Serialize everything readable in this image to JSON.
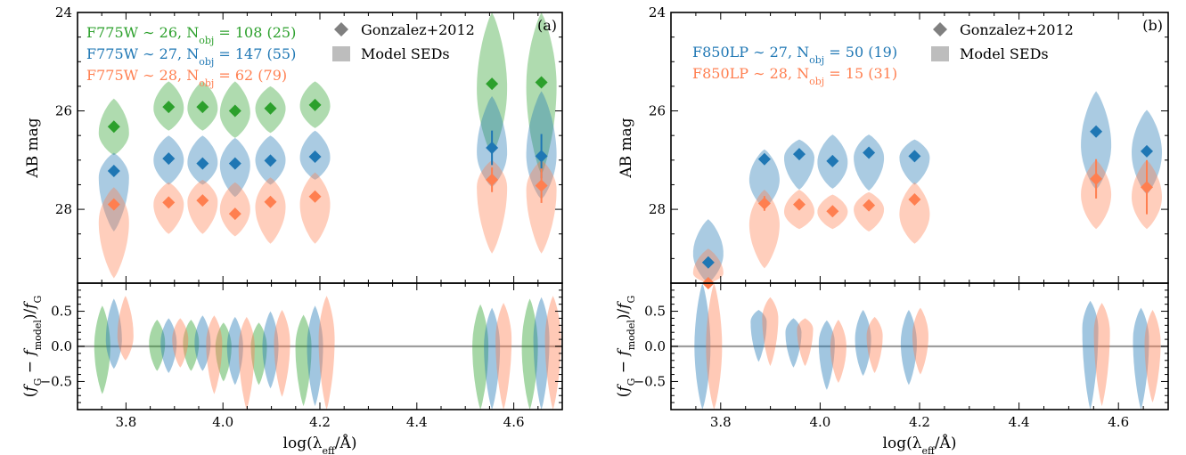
{
  "colors": {
    "green": "#2ca02c",
    "blue": "#1f77b4",
    "orange": "#ff7f50",
    "legend_gray": "#808080",
    "model_gray": "#bdbdbd",
    "zero_line": "#9e9e9e"
  },
  "chart_data": [
    {
      "type": "violin",
      "panel_label": "(a)",
      "xlabel": "log(λeff/Å)",
      "xlabel_parts": [
        "log(λ",
        "eff",
        "/Å)"
      ],
      "ylabel_top": "AB mag",
      "ylabel_bottom": "(fG − fmodel)/fG",
      "xlim": [
        3.7,
        4.7
      ],
      "top_ylim": [
        29.5,
        24
      ],
      "top_yticks": [
        24,
        26,
        28
      ],
      "bottom_ylim": [
        -0.9,
        0.9
      ],
      "bottom_yticks": [
        -0.5,
        0.0,
        0.5
      ],
      "xticks": [
        3.8,
        4.0,
        4.2,
        4.4,
        4.6
      ],
      "xtick_labels": [
        "3.8",
        "4.0",
        "4.2",
        "4.4",
        "4.6"
      ],
      "bottom_ytick_labels": [
        "−0.5",
        "0.0",
        "0.5"
      ],
      "legend_markers": [
        "Gonzalez+2012",
        "Model SEDs"
      ],
      "x": [
        3.775,
        3.888,
        3.958,
        4.025,
        4.098,
        4.19,
        4.555,
        4.657
      ],
      "series": [
        {
          "label_parts": [
            "F775W ∼ 26, N",
            "obj",
            " = 108 (25)"
          ],
          "color": "green",
          "gonzalez_mag": [
            26.32,
            25.92,
            25.92,
            26.0,
            25.95,
            25.88,
            25.45,
            25.42
          ],
          "gonzalez_err": [
            0.05,
            0.04,
            0.04,
            0.04,
            0.04,
            0.04,
            0.06,
            0.06
          ],
          "model_range": [
            [
              25.75,
              26.9
            ],
            [
              25.4,
              26.4
            ],
            [
              25.4,
              26.4
            ],
            [
              25.4,
              26.55
            ],
            [
              25.5,
              26.45
            ],
            [
              25.4,
              26.35
            ],
            [
              24.0,
              26.9
            ],
            [
              24.0,
              27.3
            ]
          ],
          "model_peak": [
            26.45,
            25.95,
            25.95,
            26.05,
            25.95,
            25.9,
            25.55,
            25.5
          ],
          "resid_range": [
            [
              -0.68,
              0.58
            ],
            [
              -0.35,
              0.38
            ],
            [
              -0.35,
              0.38
            ],
            [
              -0.5,
              0.34
            ],
            [
              -0.55,
              0.34
            ],
            [
              -0.85,
              0.45
            ],
            [
              -0.9,
              0.6
            ],
            [
              -0.9,
              0.68
            ]
          ],
          "resid_peak": [
            0.0,
            0.05,
            0.05,
            0.0,
            0.0,
            0.0,
            0.0,
            0.0
          ]
        },
        {
          "label_parts": [
            "F775W ∼ 27, N",
            "obj",
            " = 147 (55)"
          ],
          "color": "blue",
          "gonzalez_mag": [
            27.22,
            26.97,
            27.07,
            27.07,
            27.01,
            26.93,
            26.75,
            26.92
          ],
          "gonzalez_err": [
            0.06,
            0.05,
            0.05,
            0.05,
            0.05,
            0.05,
            0.35,
            0.45
          ],
          "model_range": [
            [
              26.85,
              28.45
            ],
            [
              26.5,
              27.5
            ],
            [
              26.5,
              27.5
            ],
            [
              26.55,
              27.75
            ],
            [
              26.5,
              27.5
            ],
            [
              26.4,
              27.4
            ],
            [
              25.7,
              27.55
            ],
            [
              25.6,
              27.8
            ]
          ],
          "model_peak": [
            27.35,
            27.0,
            27.05,
            27.1,
            27.0,
            26.95,
            26.85,
            26.9
          ],
          "resid_range": [
            [
              -0.32,
              0.68
            ],
            [
              -0.38,
              0.4
            ],
            [
              -0.35,
              0.44
            ],
            [
              -0.55,
              0.42
            ],
            [
              -0.6,
              0.5
            ],
            [
              -0.85,
              0.58
            ],
            [
              -0.9,
              0.55
            ],
            [
              -0.9,
              0.7
            ]
          ],
          "resid_peak": [
            0.1,
            0.05,
            0.05,
            0.0,
            0.0,
            0.0,
            0.0,
            0.1
          ]
        },
        {
          "label_parts": [
            "F775W ∼ 28, N",
            "obj",
            " = 62 (79)"
          ],
          "color": "orange",
          "gonzalez_mag": [
            27.9,
            27.86,
            27.82,
            28.09,
            27.85,
            27.74,
            27.4,
            27.52
          ],
          "gonzalez_err": [
            0.07,
            0.06,
            0.06,
            0.06,
            0.06,
            0.06,
            0.25,
            0.35
          ],
          "model_range": [
            [
              27.55,
              29.4
            ],
            [
              27.45,
              28.5
            ],
            [
              27.4,
              28.5
            ],
            [
              27.45,
              28.55
            ],
            [
              27.35,
              28.7
            ],
            [
              27.25,
              28.7
            ],
            [
              27.0,
              28.9
            ],
            [
              27.0,
              28.9
            ]
          ],
          "model_peak": [
            28.25,
            27.9,
            27.85,
            28.0,
            27.95,
            27.9,
            27.55,
            27.6
          ],
          "resid_range": [
            [
              -0.2,
              0.72
            ],
            [
              -0.3,
              0.4
            ],
            [
              -0.68,
              0.44
            ],
            [
              -0.9,
              0.42
            ],
            [
              -0.72,
              0.52
            ],
            [
              -0.9,
              0.72
            ],
            [
              -0.9,
              0.62
            ],
            [
              -0.9,
              0.72
            ]
          ],
          "resid_peak": [
            0.15,
            0.1,
            0.05,
            0.0,
            0.05,
            0.1,
            0.1,
            0.1
          ]
        }
      ]
    },
    {
      "type": "violin",
      "panel_label": "(b)",
      "xlabel": "log(λeff/Å)",
      "xlabel_parts": [
        "log(λ",
        "eff",
        "/Å)"
      ],
      "ylabel_top": "AB mag",
      "ylabel_bottom": "(fG − fmodel)/fG",
      "xlim": [
        3.7,
        4.7
      ],
      "top_ylim": [
        29.5,
        24
      ],
      "top_yticks": [
        24,
        26,
        28
      ],
      "bottom_ylim": [
        -0.9,
        0.9
      ],
      "bottom_yticks": [
        -0.5,
        0.0,
        0.5
      ],
      "xticks": [
        3.8,
        4.0,
        4.2,
        4.4,
        4.6
      ],
      "xtick_labels": [
        "3.8",
        "4.0",
        "4.2",
        "4.4",
        "4.6"
      ],
      "bottom_ytick_labels": [
        "−0.5",
        "0.0",
        "0.5"
      ],
      "legend_markers": [
        "Gonzalez+2012",
        "Model SEDs"
      ],
      "x": [
        3.775,
        3.888,
        3.958,
        4.025,
        4.098,
        4.19,
        4.555,
        4.657
      ],
      "series": [
        {
          "label_parts": [
            "F850LP ∼ 27, N",
            "obj",
            " = 50 (19)"
          ],
          "color": "blue",
          "gonzalez_mag": [
            29.08,
            26.98,
            26.88,
            27.02,
            26.85,
            26.92,
            26.42,
            26.82
          ],
          "gonzalez_err": [
            0.1,
            0.06,
            0.06,
            0.06,
            0.06,
            0.06,
            0.06,
            0.06
          ],
          "model_range": [
            [
              28.2,
              29.5
            ],
            [
              26.78,
              27.98
            ],
            [
              26.58,
              27.6
            ],
            [
              26.48,
              27.58
            ],
            [
              26.48,
              27.62
            ],
            [
              26.58,
              27.5
            ],
            [
              25.6,
              27.6
            ],
            [
              25.98,
              27.7
            ]
          ],
          "model_peak": [
            28.9,
            27.4,
            26.95,
            27.05,
            26.95,
            26.95,
            26.7,
            26.85
          ],
          "resid_range": [
            [
              -0.9,
              0.9
            ],
            [
              -0.22,
              0.52
            ],
            [
              -0.3,
              0.4
            ],
            [
              -0.62,
              0.37
            ],
            [
              -0.42,
              0.52
            ],
            [
              -0.55,
              0.52
            ],
            [
              -0.9,
              0.65
            ],
            [
              -0.9,
              0.55
            ]
          ],
          "resid_peak": [
            0.0,
            0.35,
            0.2,
            0.05,
            0.1,
            0.05,
            0.25,
            0.1
          ]
        },
        {
          "label_parts": [
            "F850LP ∼ 28, N",
            "obj",
            " = 15 (31)"
          ],
          "color": "orange",
          "gonzalez_mag": [
            29.5,
            27.88,
            27.9,
            28.04,
            27.92,
            27.8,
            27.38,
            27.55
          ],
          "gonzalez_err": [
            0.1,
            0.15,
            0.1,
            0.1,
            0.1,
            0.1,
            0.4,
            0.55
          ],
          "model_range": [
            [
              28.8,
              29.5
            ],
            [
              27.6,
              29.2
            ],
            [
              27.6,
              28.4
            ],
            [
              27.7,
              28.4
            ],
            [
              27.65,
              28.45
            ],
            [
              27.45,
              28.7
            ],
            [
              27.0,
              28.4
            ],
            [
              27.0,
              28.4
            ]
          ],
          "model_peak": [
            29.3,
            28.3,
            28.05,
            28.05,
            28.0,
            28.1,
            27.7,
            27.75
          ],
          "resid_range": [
            [
              -0.9,
              0.9
            ],
            [
              -0.28,
              0.7
            ],
            [
              -0.28,
              0.4
            ],
            [
              -0.52,
              0.38
            ],
            [
              -0.38,
              0.42
            ],
            [
              -0.4,
              0.55
            ],
            [
              -0.85,
              0.62
            ],
            [
              -0.8,
              0.52
            ]
          ],
          "resid_peak": [
            0.0,
            0.4,
            0.25,
            0.0,
            0.15,
            0.15,
            0.2,
            0.05
          ]
        }
      ]
    }
  ]
}
